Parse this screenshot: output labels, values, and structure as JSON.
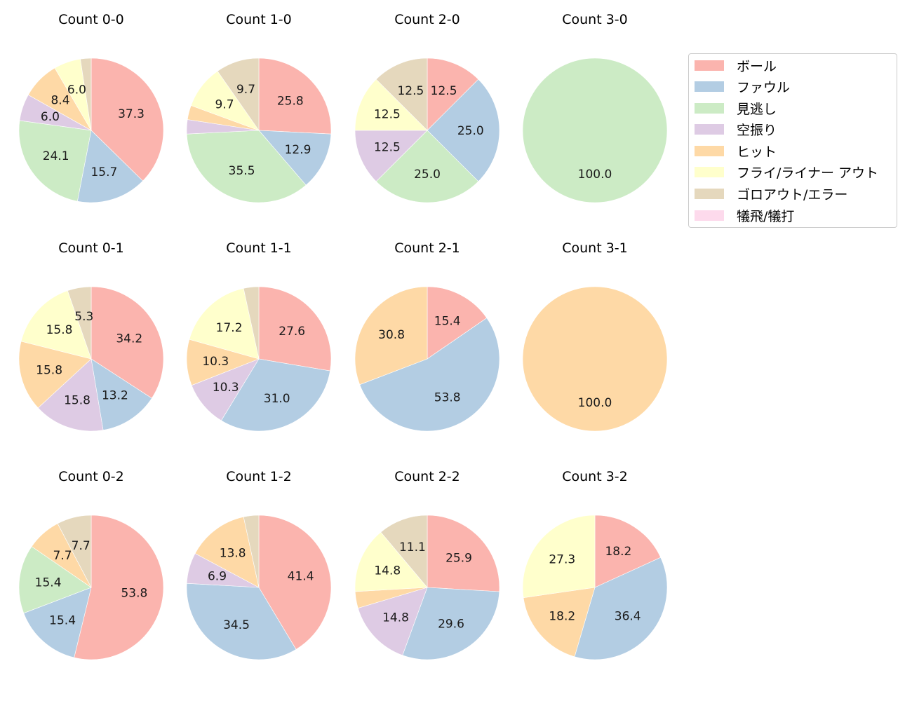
{
  "legend": {
    "items": [
      {
        "label": "ボール",
        "color": "#fbb4ae"
      },
      {
        "label": "ファウル",
        "color": "#b3cde3"
      },
      {
        "label": "見逃し",
        "color": "#ccebc5"
      },
      {
        "label": "空振り",
        "color": "#decbe4"
      },
      {
        "label": "ヒット",
        "color": "#fed9a6"
      },
      {
        "label": "フライ/ライナー アウト",
        "color": "#ffffcc"
      },
      {
        "label": "ゴロアウト/エラー",
        "color": "#e5d8bd"
      },
      {
        "label": "犠飛/犠打",
        "color": "#fddaec"
      }
    ]
  },
  "chart_data": {
    "type": "pie",
    "categories": [
      "ボール",
      "ファウル",
      "見逃し",
      "空振り",
      "ヒット",
      "フライ/ライナー アウト",
      "ゴロアウト/エラー",
      "犠飛/犠打"
    ],
    "colors": [
      "#fbb4ae",
      "#b3cde3",
      "#ccebc5",
      "#decbe4",
      "#fed9a6",
      "#ffffcc",
      "#e5d8bd",
      "#fddaec"
    ],
    "start_angle": 90,
    "direction": "clockwise",
    "label_threshold_pct": 5,
    "charts": [
      {
        "title": "Count 0-0",
        "row": 0,
        "col": 0,
        "values": [
          37.3,
          15.7,
          24.1,
          6.0,
          8.4,
          6.0,
          2.4,
          0
        ]
      },
      {
        "title": "Count 1-0",
        "row": 0,
        "col": 1,
        "values": [
          25.8,
          12.9,
          35.5,
          3.2,
          3.2,
          9.7,
          9.7,
          0
        ]
      },
      {
        "title": "Count 2-0",
        "row": 0,
        "col": 2,
        "values": [
          12.5,
          25.0,
          25.0,
          12.5,
          0,
          12.5,
          12.5,
          0
        ]
      },
      {
        "title": "Count 3-0",
        "row": 0,
        "col": 3,
        "values": [
          0,
          0,
          100.0,
          0,
          0,
          0,
          0,
          0
        ]
      },
      {
        "title": "Count 0-1",
        "row": 1,
        "col": 0,
        "values": [
          34.2,
          13.2,
          0,
          15.8,
          15.8,
          15.8,
          5.3,
          0
        ]
      },
      {
        "title": "Count 1-1",
        "row": 1,
        "col": 1,
        "values": [
          27.6,
          31.0,
          0,
          10.3,
          10.3,
          17.2,
          3.4,
          0
        ]
      },
      {
        "title": "Count 2-1",
        "row": 1,
        "col": 2,
        "values": [
          15.4,
          53.8,
          0,
          0,
          30.8,
          0,
          0,
          0
        ]
      },
      {
        "title": "Count 3-1",
        "row": 1,
        "col": 3,
        "values": [
          0,
          0,
          0,
          0,
          100.0,
          0,
          0,
          0
        ]
      },
      {
        "title": "Count 0-2",
        "row": 2,
        "col": 0,
        "values": [
          53.8,
          15.4,
          15.4,
          0,
          7.7,
          0,
          7.7,
          0
        ]
      },
      {
        "title": "Count 1-2",
        "row": 2,
        "col": 1,
        "values": [
          41.4,
          34.5,
          0,
          6.9,
          13.8,
          0,
          3.4,
          0
        ]
      },
      {
        "title": "Count 2-2",
        "row": 2,
        "col": 2,
        "values": [
          25.9,
          29.6,
          0,
          14.8,
          3.7,
          14.8,
          11.1,
          0
        ]
      },
      {
        "title": "Count 3-2",
        "row": 2,
        "col": 3,
        "values": [
          18.2,
          36.4,
          0,
          0,
          18.2,
          27.3,
          0,
          0
        ]
      }
    ]
  }
}
